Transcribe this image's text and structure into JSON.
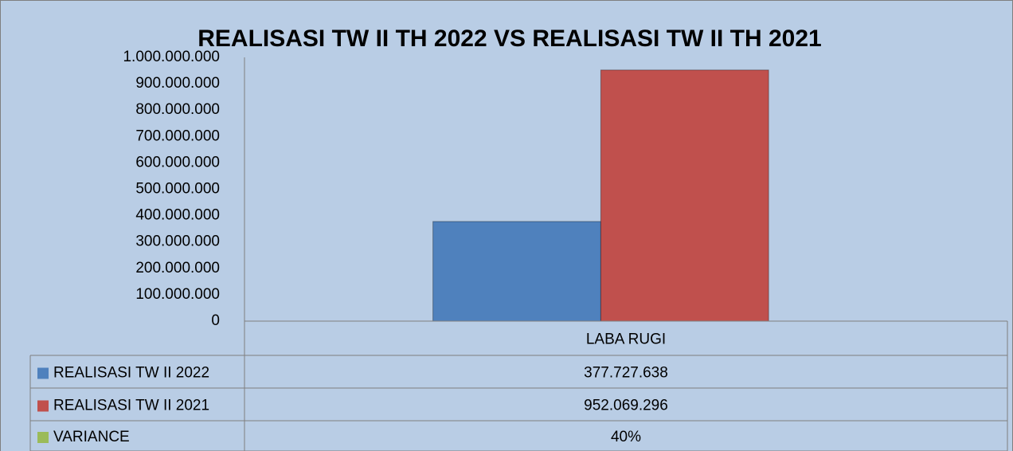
{
  "chart_data": {
    "type": "bar",
    "title": "REALISASI TW II TH 2022 VS REALISASI TW II TH 2021",
    "categories": [
      "LABA RUGI"
    ],
    "series": [
      {
        "name": "REALISASI TW II 2022",
        "color": "#4f81bd",
        "values": [
          377727638
        ],
        "value_labels": [
          "377.727.638"
        ]
      },
      {
        "name": "REALISASI TW II 2021",
        "color": "#c0504d",
        "values": [
          952069296
        ],
        "value_labels": [
          "952.069.296"
        ]
      },
      {
        "name": "VARIANCE",
        "color": "#9bbb59",
        "values": [
          40
        ],
        "value_labels": [
          "40%"
        ]
      }
    ],
    "ylim": [
      0,
      1000000000
    ],
    "yticks": [
      0,
      {
        "value": 100000000,
        "label": "100.000.000"
      },
      {
        "value": 200000000,
        "label": "200.000.000"
      },
      {
        "value": 300000000,
        "label": "300.000.000"
      },
      {
        "value": 400000000,
        "label": "400.000.000"
      },
      {
        "value": 500000000,
        "label": "500.000.000"
      },
      {
        "value": 600000000,
        "label": "600.000.000"
      },
      {
        "value": 700000000,
        "label": "700.000.000"
      },
      {
        "value": 800000000,
        "label": "800.000.000"
      },
      {
        "value": 900000000,
        "label": "900.000.000"
      },
      {
        "value": 1000000000,
        "label": "1.000.000.000"
      }
    ],
    "grid": false,
    "data_table": true
  }
}
